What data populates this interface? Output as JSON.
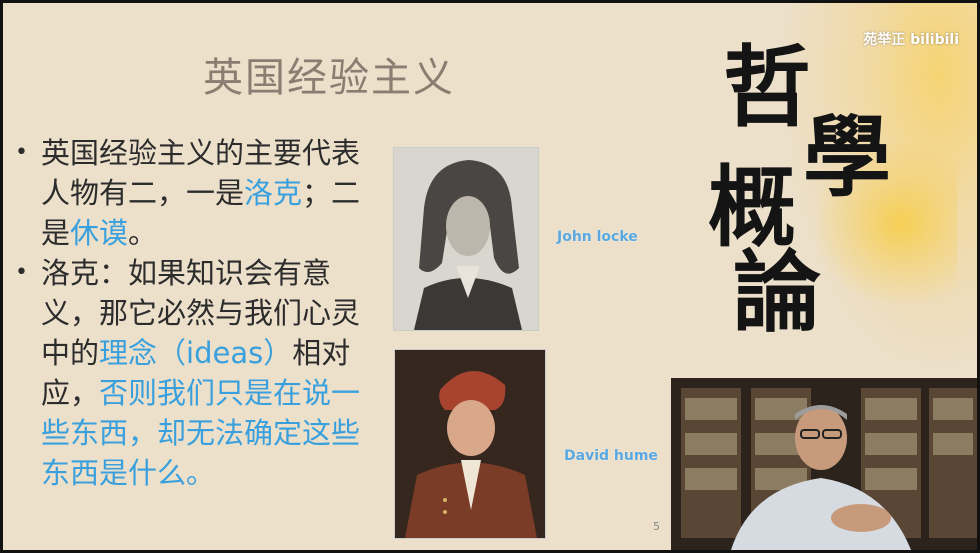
{
  "slide": {
    "title": "英国经验主义",
    "bullets": [
      {
        "parts": [
          "英国经验主义的主要代表人物有二，一是",
          "洛克",
          "；二是",
          "休谟",
          "。"
        ]
      },
      {
        "parts": [
          "洛克：如果知识会有意义，那它必然与我们心灵中的",
          "理念（ideas）",
          "相对应，",
          "否则我们只是在说一些东西，却无法确定这些东西是什么。"
        ]
      }
    ],
    "captions": {
      "locke": "John locke",
      "hume": "David hume"
    },
    "calligraphy": [
      "哲",
      "學",
      "概",
      "論"
    ],
    "page_number": "5"
  },
  "watermark": {
    "author": "苑举正",
    "site": "bilibili"
  },
  "colors": {
    "background": "#ece0cb",
    "highlight": "#3aa0dd",
    "title": "#8a7d72"
  }
}
